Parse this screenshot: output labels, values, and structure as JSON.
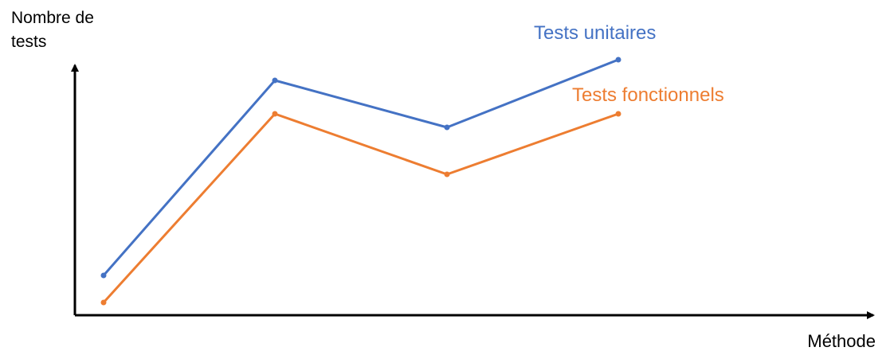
{
  "chart_data": {
    "type": "line",
    "title": "",
    "xlabel": "Méthode",
    "ylabel": "Nombre de\ntests",
    "x": [
      1,
      2,
      3,
      4
    ],
    "ylim": [
      0,
      10
    ],
    "grid": false,
    "axis_ticks": false,
    "series": [
      {
        "name": "Tests unitaires",
        "color": "#4472C4",
        "values": [
          1.6,
          9.5,
          7.6,
          10.4
        ]
      },
      {
        "name": "Tests fonctionnels",
        "color": "#ED7D31",
        "values": [
          0.5,
          8.2,
          5.6,
          8.2
        ]
      }
    ]
  }
}
